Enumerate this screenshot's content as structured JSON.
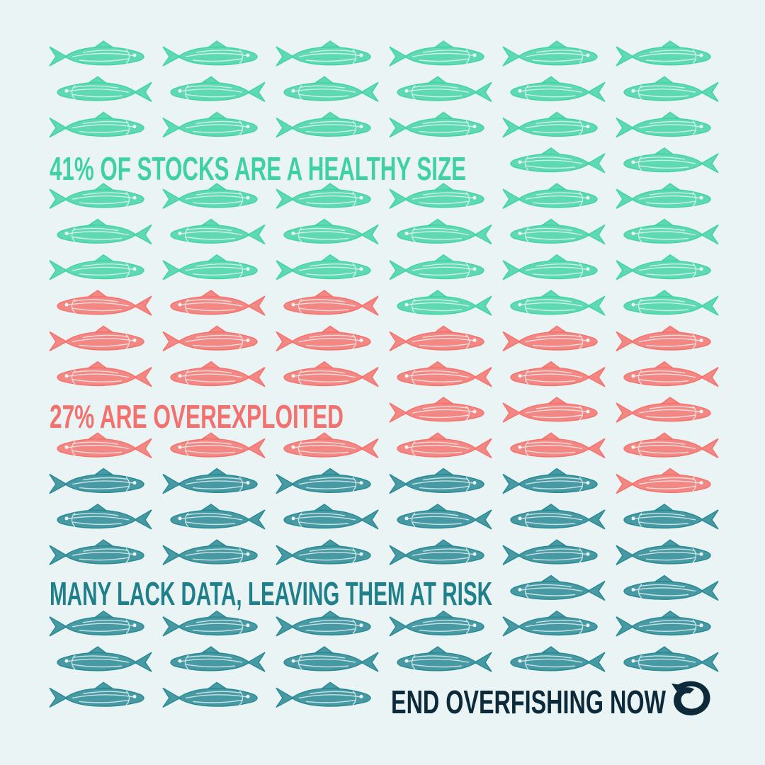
{
  "messages": [
    "41% OF STOCKS ARE A HEALTHY SIZE",
    "27% ARE OVEREXPLOITED",
    "MANY LACK DATA, LEAVING THEM AT RISK"
  ],
  "call_to_action": "END OVERFISHING NOW"
}
